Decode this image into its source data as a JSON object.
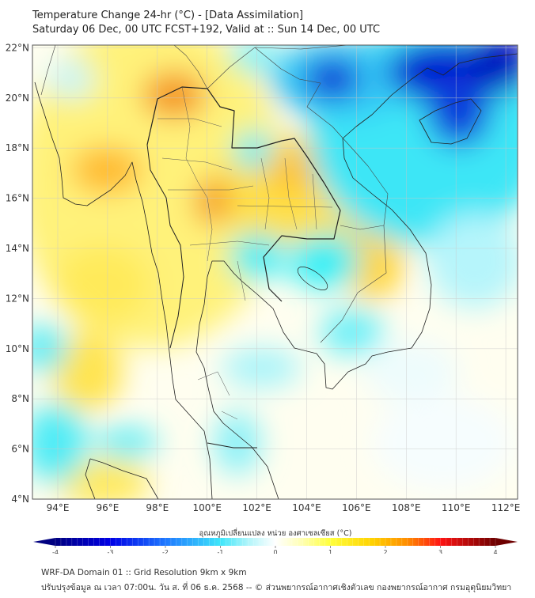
{
  "header": {
    "title": "Temperature Change 24-hr (°C) - [Data Assimilation]",
    "subtitle": "Saturday 06 Dec, 00 UTC FCST+192, Valid at :: Sun 14 Dec, 00 UTC"
  },
  "map": {
    "lat_labels": [
      "4°N",
      "6°N",
      "8°N",
      "10°N",
      "12°N",
      "14°N",
      "16°N",
      "18°N",
      "20°N",
      "22°N"
    ],
    "lat_values": [
      4,
      6,
      8,
      10,
      12,
      14,
      16,
      18,
      20,
      22
    ],
    "lon_labels": [
      "94°E",
      "96°E",
      "98°E",
      "100°E",
      "102°E",
      "104°E",
      "106°E",
      "108°E",
      "110°E",
      "112°E"
    ],
    "lon_values": [
      94,
      96,
      98,
      100,
      102,
      104,
      106,
      108,
      110,
      112
    ],
    "extent": {
      "lon": [
        93,
        112.5
      ],
      "lat": [
        4,
        22.2
      ]
    }
  },
  "colorbar": {
    "label": "อุณหภูมิเปลี่ยนแปลง หน่วย องศาเซลเซียส (°C)",
    "ticks": [
      "-4",
      "-3",
      "-2",
      "-1",
      "0",
      "1",
      "2",
      "3",
      "4"
    ],
    "tick_values": [
      -4,
      -3,
      -2,
      -1,
      0,
      1,
      2,
      3,
      4
    ],
    "range": [
      -4,
      4
    ],
    "colors": {
      "min": "#000080",
      "neg3": "#0000e6",
      "neg2": "#1e78ff",
      "neg1": "#3ee6fa",
      "zero": "#ffffff",
      "pos1": "#ffff3c",
      "pos2": "#ffb000",
      "pos3": "#ff1414",
      "max": "#6e0000"
    }
  },
  "footer": {
    "line1": "WRF-DA Domain 01 :: Grid Resolution 9km x 9km",
    "line2": "ปรับปรุงข้อมูล ณ เวลา 07:00น. วัน ส. ที่ 06 ธ.ค. 2568 -- © ส่วนพยากรณ์อากาศเชิงตัวเลข กองพยากรณ์อากาศ กรมอุตุนิยมวิทยา"
  }
}
